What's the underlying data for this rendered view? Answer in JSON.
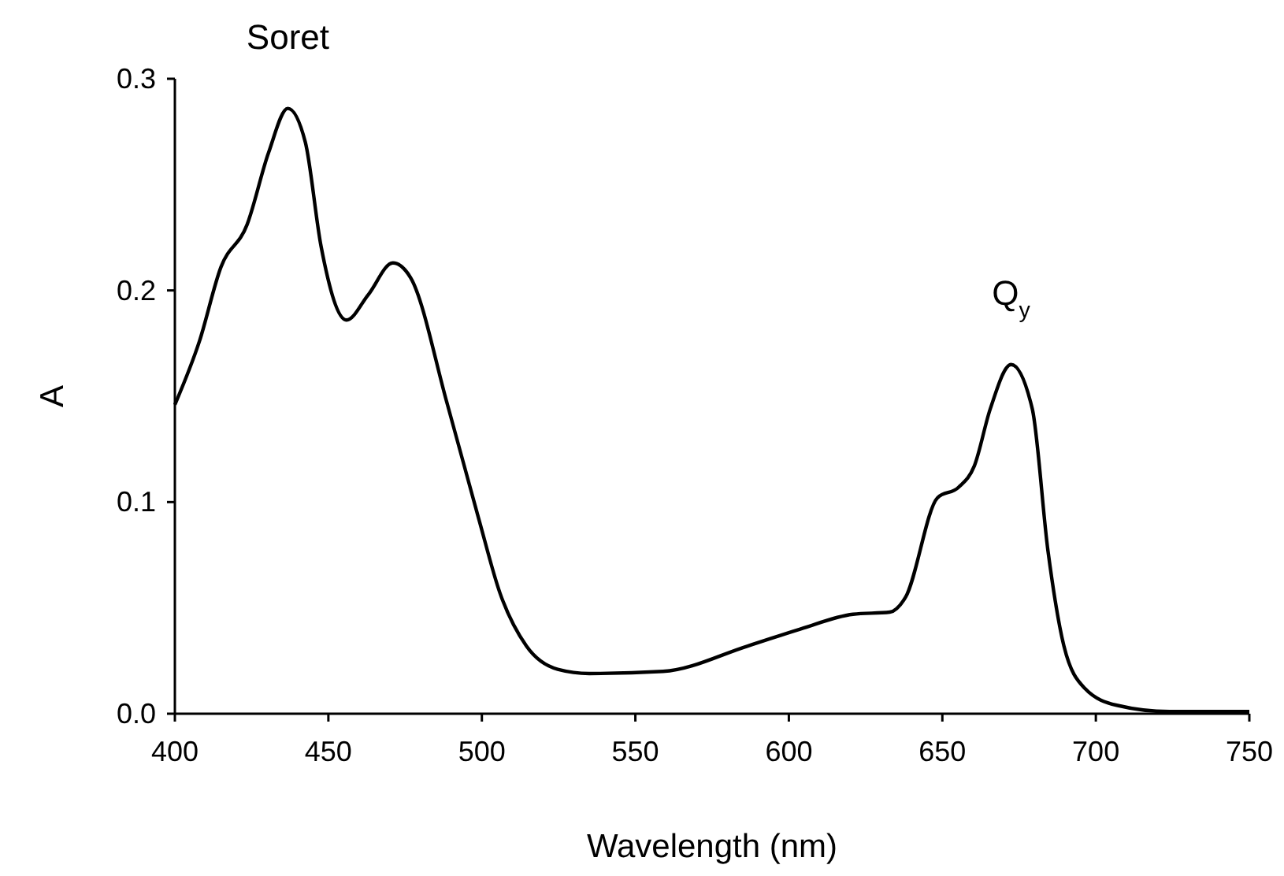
{
  "chart_data": {
    "type": "line",
    "xlabel": "Wavelength (nm)",
    "ylabel": "A",
    "x": [
      400,
      408,
      415,
      423.5,
      430.5,
      436.8,
      442.5,
      447.6,
      455.9,
      463,
      471,
      476.8,
      488.8,
      499,
      505.9,
      514.5,
      524.7,
      535,
      559,
      586.6,
      603.7,
      620.9,
      632.9,
      638,
      648.4,
      655.3,
      660.4,
      665.6,
      672.4,
      679.3,
      684.4,
      689.6,
      696.4,
      706.8,
      724,
      750
    ],
    "series": [
      {
        "color": "#000000",
        "values": [
          0.146,
          0.176,
          0.211,
          0.231,
          0.265,
          0.286,
          0.27,
          0.221,
          0.186,
          0.198,
          0.213,
          0.206,
          0.146,
          0.092,
          0.057,
          0.032,
          0.021,
          0.019,
          0.02,
          0.032,
          0.04,
          0.047,
          0.048,
          0.055,
          0.102,
          0.107,
          0.117,
          0.144,
          0.165,
          0.144,
          0.077,
          0.032,
          0.012,
          0.004,
          0.001,
          0.001
        ]
      }
    ],
    "xlim": [
      400,
      750
    ],
    "xticks": [
      400,
      450,
      500,
      550,
      600,
      650,
      700,
      750
    ],
    "ylim": [
      0,
      0.3
    ],
    "yticks": [
      {
        "value": 0,
        "label": "0.0"
      },
      0.1,
      0.2,
      0.3
    ],
    "annotations": [
      {
        "text": "Soret",
        "x": 436.8,
        "y": 0.286
      },
      {
        "text": "Q$_{y}$",
        "x": 672.4,
        "y": 0.165
      }
    ],
    "grid": false,
    "marker": "none",
    "line_style": "solid"
  }
}
